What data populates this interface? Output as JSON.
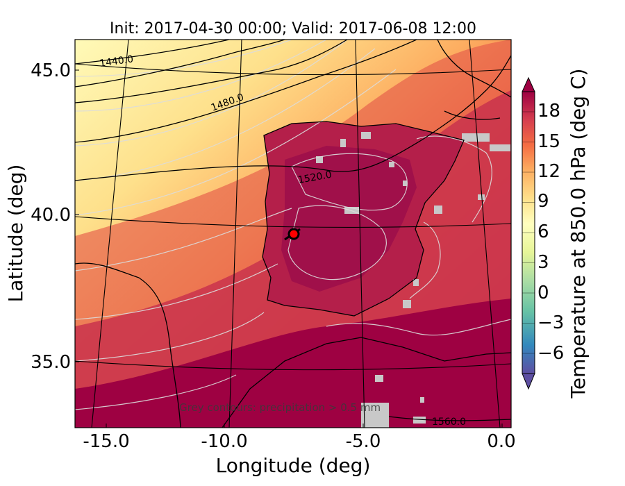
{
  "title": "Init: 2017-04-30 00:00; Valid: 2017-06-08 12:00",
  "map": {
    "x_label": "Longitude (deg)",
    "y_label": "Latitude (deg)",
    "x_ticks": [
      "-15.0",
      "-10.0",
      "-5.0",
      "0.0"
    ],
    "y_ticks": [
      "45.0",
      "40.0",
      "35.0"
    ],
    "lon_range": [
      -15.9,
      0.1
    ],
    "lat_range": [
      32.8,
      46.0
    ],
    "colormap": "Spectral_r",
    "annotation": "Grey contours: precipitation > 0.5 mm",
    "height_contour_labels": [
      "1440.0",
      "1480.0",
      "1520.0",
      "1560.0"
    ],
    "marker": {
      "lon": -7.6,
      "lat": 39.3,
      "color": "#ff0000"
    },
    "precip_color": "#c8c8c8"
  },
  "colorbar": {
    "label": "Temperature at 850.0 hPa (deg C)",
    "ticks": [
      "18",
      "15",
      "12",
      "9",
      "6",
      "3",
      "0",
      "−3",
      "−6"
    ],
    "tick_values": [
      18,
      15,
      12,
      9,
      6,
      3,
      0,
      -3,
      -6
    ],
    "min": -8,
    "max": 20,
    "extend": "both"
  },
  "colors": {
    "spectral_stops": [
      "#5e4fa2",
      "#3288bd",
      "#66c2a5",
      "#abdda4",
      "#e6f598",
      "#ffffbf",
      "#fee08b",
      "#fdae61",
      "#f46d43",
      "#d53e4f",
      "#9e0142"
    ]
  }
}
